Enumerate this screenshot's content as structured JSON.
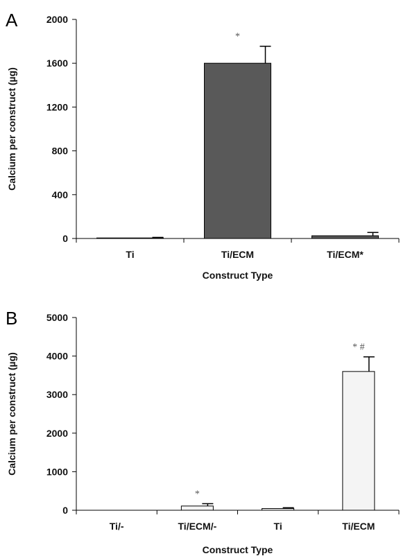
{
  "chart_data": [
    {
      "type": "bar",
      "panel_label": "A",
      "categories": [
        "Ti",
        "Ti/ECM",
        "Ti/ECM*"
      ],
      "values": [
        5,
        1600,
        25
      ],
      "errors": [
        5,
        155,
        30
      ],
      "annotations": [
        "",
        "*",
        ""
      ],
      "bar_color": "#595959",
      "xlabel": "Construct Type",
      "ylabel": "Calcium per construct (µg)",
      "ylim": [
        0,
        2000
      ],
      "yticks": [
        0,
        400,
        800,
        1200,
        1600,
        2000
      ],
      "grid": false,
      "legend": "none"
    },
    {
      "type": "bar",
      "panel_label": "B",
      "categories": [
        "Ti/-",
        "Ti/ECM/-",
        "Ti",
        "Ti/ECM"
      ],
      "values": [
        0,
        110,
        45,
        3600
      ],
      "errors": [
        0,
        60,
        20,
        380
      ],
      "annotations": [
        "",
        "*",
        "",
        "* #"
      ],
      "bar_color": "#f4f4f4",
      "xlabel": "Construct Type",
      "ylabel": "Calcium per construct (µg)",
      "ylim": [
        0,
        5000
      ],
      "yticks": [
        0,
        1000,
        2000,
        3000,
        4000,
        5000
      ],
      "grid": false,
      "legend": "none"
    }
  ]
}
